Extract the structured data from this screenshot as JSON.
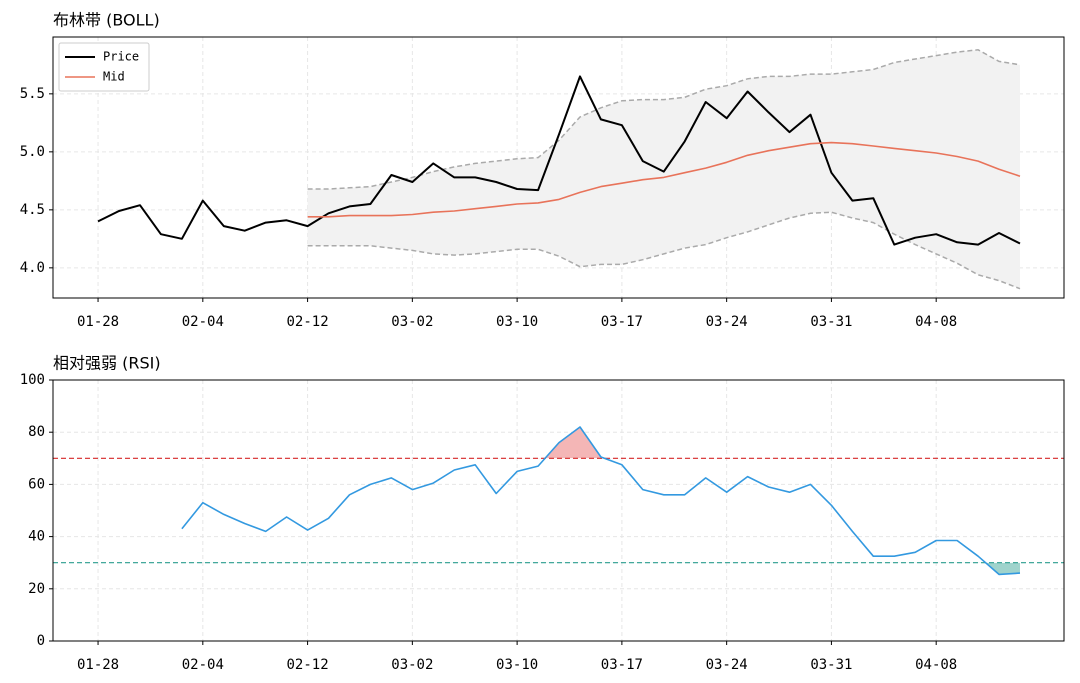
{
  "chart_data": [
    {
      "type": "line",
      "title": "布林带 (BOLL)",
      "categories": [
        "01-28",
        null,
        null,
        null,
        null,
        "02-04",
        null,
        null,
        null,
        null,
        "02-12",
        null,
        null,
        null,
        null,
        "03-02",
        null,
        null,
        null,
        null,
        "03-10",
        null,
        null,
        null,
        null,
        "03-17",
        null,
        null,
        null,
        null,
        "03-24",
        null,
        null,
        null,
        null,
        "03-31",
        null,
        null,
        null,
        null,
        "04-08",
        null,
        null,
        null,
        null
      ],
      "series": [
        {
          "name": "Price",
          "color": "#000000",
          "values": [
            4.4,
            4.49,
            4.54,
            4.29,
            4.25,
            4.58,
            4.36,
            4.32,
            4.39,
            4.41,
            4.36,
            4.47,
            4.53,
            4.55,
            4.8,
            4.74,
            4.9,
            4.78,
            4.78,
            4.74,
            4.68,
            4.67,
            5.15,
            5.65,
            5.28,
            5.23,
            4.92,
            4.83,
            5.09,
            5.43,
            5.29,
            5.52,
            5.34,
            5.17,
            5.32,
            4.82,
            4.58,
            4.6,
            4.2,
            4.26,
            4.29,
            4.22,
            4.2,
            4.3,
            4.21
          ]
        },
        {
          "name": "Mid",
          "color": "#e8735a",
          "values": [
            null,
            null,
            null,
            null,
            null,
            null,
            null,
            null,
            null,
            null,
            4.44,
            4.44,
            4.45,
            4.45,
            4.45,
            4.46,
            4.48,
            4.49,
            4.51,
            4.53,
            4.55,
            4.56,
            4.59,
            4.65,
            4.7,
            4.73,
            4.76,
            4.78,
            4.82,
            4.86,
            4.91,
            4.97,
            5.01,
            5.04,
            5.07,
            5.08,
            5.07,
            5.05,
            5.03,
            5.01,
            4.99,
            4.96,
            4.92,
            4.85,
            4.79
          ]
        }
      ],
      "band": {
        "color": "#aaaaaa",
        "upper": [
          null,
          null,
          null,
          null,
          null,
          null,
          null,
          null,
          null,
          null,
          4.68,
          4.68,
          4.69,
          4.7,
          4.74,
          4.78,
          4.83,
          4.87,
          4.9,
          4.92,
          4.94,
          4.95,
          5.1,
          5.3,
          5.38,
          5.44,
          5.45,
          5.45,
          5.47,
          5.54,
          5.57,
          5.63,
          5.65,
          5.65,
          5.67,
          5.67,
          5.69,
          5.71,
          5.77,
          5.8,
          5.83,
          5.86,
          5.88,
          5.78,
          5.75
        ],
        "lower": [
          null,
          null,
          null,
          null,
          null,
          null,
          null,
          null,
          null,
          null,
          4.19,
          4.19,
          4.19,
          4.19,
          4.17,
          4.15,
          4.12,
          4.11,
          4.12,
          4.14,
          4.16,
          4.16,
          4.1,
          4.01,
          4.03,
          4.03,
          4.07,
          4.12,
          4.17,
          4.2,
          4.26,
          4.31,
          4.37,
          4.43,
          4.47,
          4.48,
          4.43,
          4.39,
          4.29,
          4.2,
          4.12,
          4.04,
          3.94,
          3.89,
          3.82
        ]
      },
      "ylim": [
        3.74,
        5.99
      ],
      "yticks": [
        {
          "value": 4,
          "label": "4.0"
        },
        4.5,
        {
          "value": 5,
          "label": "5.0"
        },
        5.5
      ],
      "grid": true,
      "legend": "upper left"
    },
    {
      "type": "line",
      "title": "相对强弱 (RSI)",
      "categories": [
        "01-28",
        null,
        null,
        null,
        null,
        "02-04",
        null,
        null,
        null,
        null,
        "02-12",
        null,
        null,
        null,
        null,
        "03-02",
        null,
        null,
        null,
        null,
        "03-10",
        null,
        null,
        null,
        null,
        "03-17",
        null,
        null,
        null,
        null,
        "03-24",
        null,
        null,
        null,
        null,
        "03-31",
        null,
        null,
        null,
        null,
        "04-08",
        null,
        null,
        null,
        null
      ],
      "series": [
        {
          "color": "#3399e0",
          "values": [
            null,
            null,
            null,
            null,
            43,
            53,
            48.5,
            45,
            42,
            47.5,
            42.5,
            47,
            56,
            60,
            62.5,
            58,
            60.5,
            65.5,
            67.5,
            56.5,
            65,
            67,
            76,
            82,
            70.5,
            67.5,
            58,
            56,
            56,
            62.5,
            57,
            63,
            59,
            57,
            60,
            52,
            42,
            32.5,
            32.5,
            34,
            38.5,
            38.5,
            32.5,
            25.5,
            26
          ]
        }
      ],
      "thresholds": [
        {
          "value": 70,
          "color": "#d62728",
          "fill": "#f4b6b6",
          "side": "above"
        },
        {
          "value": 30,
          "color": "#2a9d8f",
          "fill": "#9fd3cc",
          "side": "below"
        }
      ],
      "ylim": [
        0,
        100
      ],
      "yticks": [
        0,
        20,
        40,
        60,
        80,
        100
      ],
      "grid": true
    }
  ]
}
